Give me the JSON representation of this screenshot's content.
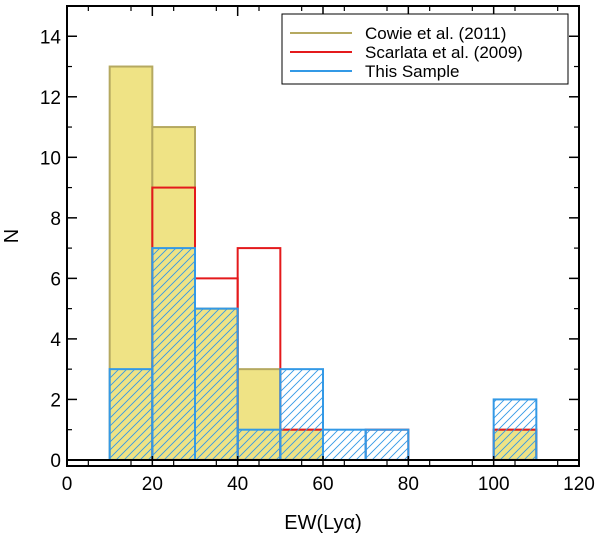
{
  "chart_data": {
    "type": "bar",
    "title": "",
    "xlabel": "EW(Lyα)",
    "ylabel": "N",
    "xlim": [
      0,
      120
    ],
    "ylim": [
      -0.2,
      15
    ],
    "xticks": [
      0,
      20,
      40,
      60,
      80,
      100,
      120
    ],
    "yticks": [
      0,
      2,
      4,
      6,
      8,
      10,
      12,
      14
    ],
    "xtick_labels": [
      "0",
      "20",
      "40",
      "60",
      "80",
      "100",
      "120"
    ],
    "ytick_labels": [
      "0",
      "2",
      "4",
      "6",
      "8",
      "10",
      "12",
      "14"
    ],
    "grid": false,
    "legend_position": "top-right",
    "series": [
      {
        "name": "Cowie et al. (2011)",
        "style": "filled",
        "color": "#b5a960",
        "fill": "#efe385",
        "bins": [
          {
            "x0": 10,
            "x1": 20,
            "value": 13
          },
          {
            "x0": 20,
            "x1": 30,
            "value": 11
          },
          {
            "x0": 30,
            "x1": 40,
            "value": 5
          },
          {
            "x0": 40,
            "x1": 50,
            "value": 3
          },
          {
            "x0": 50,
            "x1": 60,
            "value": 1
          },
          {
            "x0": 100,
            "x1": 110,
            "value": 1
          }
        ]
      },
      {
        "name": "Scarlata et al. (2009)",
        "style": "outline",
        "color": "#e41a1c",
        "bins": [
          {
            "x0": 20,
            "x1": 30,
            "value": 9
          },
          {
            "x0": 30,
            "x1": 40,
            "value": 6
          },
          {
            "x0": 40,
            "x1": 50,
            "value": 7
          },
          {
            "x0": 50,
            "x1": 60,
            "value": 1
          },
          {
            "x0": 70,
            "x1": 80,
            "value": 1
          },
          {
            "x0": 100,
            "x1": 110,
            "value": 1
          }
        ]
      },
      {
        "name": "This Sample",
        "style": "hatched",
        "color": "#3399e6",
        "bins": [
          {
            "x0": 10,
            "x1": 20,
            "value": 3
          },
          {
            "x0": 20,
            "x1": 30,
            "value": 7
          },
          {
            "x0": 30,
            "x1": 40,
            "value": 5
          },
          {
            "x0": 40,
            "x1": 50,
            "value": 1
          },
          {
            "x0": 50,
            "x1": 60,
            "value": 3
          },
          {
            "x0": 60,
            "x1": 70,
            "value": 1
          },
          {
            "x0": 70,
            "x1": 80,
            "value": 1
          },
          {
            "x0": 100,
            "x1": 110,
            "value": 2
          }
        ]
      }
    ],
    "legend": [
      {
        "label": "Cowie et al. (2011)",
        "color": "#b5a960"
      },
      {
        "label": "Scarlata et al. (2009)",
        "color": "#e41a1c"
      },
      {
        "label": "This Sample",
        "color": "#3399e6"
      }
    ]
  }
}
